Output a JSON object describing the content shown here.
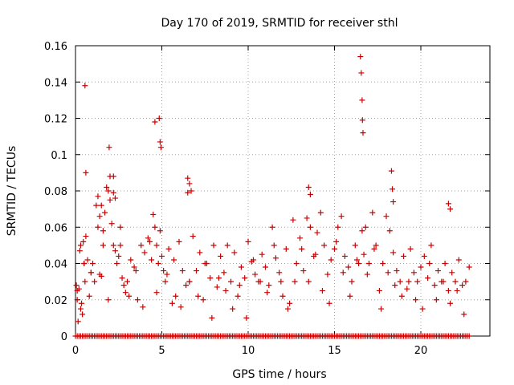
{
  "chart_data": {
    "type": "scatter",
    "title": "Day 170 of 2019, SRMTID for receiver sthl",
    "xlabel": "GPS time / hours",
    "ylabel": "SRMTID / TECUs",
    "xlim": [
      0,
      24
    ],
    "ylim": [
      0,
      0.16
    ],
    "x_ticks": [
      0,
      5,
      10,
      15,
      20
    ],
    "x_tick_labels": [
      "0",
      "5",
      "10",
      "15",
      "20"
    ],
    "y_ticks": [
      0,
      0.02,
      0.04,
      0.06,
      0.08,
      0.1,
      0.12,
      0.14,
      0.16
    ],
    "y_tick_labels": [
      "0",
      "0.02",
      "0.04",
      "0.06",
      "0.08",
      "0.1",
      "0.12",
      "0.14",
      "0.16"
    ],
    "grid": true,
    "marker": "+",
    "color": "#cc0000",
    "zero_baseline": {
      "x_start": 0,
      "x_end": 22.8,
      "step": 0.1,
      "y": 0
    },
    "series": [
      {
        "name": "SRMTID",
        "x": [
          0.05,
          0.1,
          0.15,
          0.2,
          0.25,
          0.3,
          0.35,
          0.4,
          0.45,
          0.5,
          0.55,
          0.6,
          0.7,
          0.8,
          0.9,
          1.0,
          1.1,
          1.2,
          1.3,
          1.4,
          1.5,
          1.6,
          1.7,
          1.8,
          1.9,
          2.0,
          2.1,
          2.2,
          2.3,
          2.4,
          2.5,
          2.6,
          2.7,
          2.8,
          2.9,
          3.0,
          3.2,
          3.4,
          3.6,
          3.8,
          4.0,
          4.2,
          4.4,
          4.5,
          4.6,
          4.7,
          4.8,
          4.9,
          5.0,
          5.1,
          5.2,
          5.4,
          5.6,
          5.8,
          6.0,
          6.2,
          6.4,
          6.5,
          6.6,
          6.8,
          7.0,
          7.2,
          7.4,
          7.6,
          7.8,
          8.0,
          8.2,
          8.4,
          8.6,
          8.8,
          9.0,
          9.2,
          9.4,
          9.6,
          9.8,
          10.0,
          10.2,
          10.4,
          10.6,
          10.8,
          11.0,
          11.2,
          11.4,
          11.6,
          11.8,
          12.0,
          12.2,
          12.4,
          12.6,
          12.8,
          13.0,
          13.2,
          13.4,
          13.6,
          13.8,
          14.0,
          14.2,
          14.4,
          14.6,
          14.8,
          15.0,
          15.2,
          15.4,
          15.6,
          15.8,
          16.0,
          16.2,
          16.4,
          16.6,
          16.7,
          16.8,
          17.0,
          17.2,
          17.4,
          17.6,
          17.8,
          18.0,
          18.2,
          18.4,
          18.6,
          18.8,
          19.0,
          19.2,
          19.4,
          19.6,
          19.8,
          20.0,
          20.2,
          20.4,
          20.6,
          20.8,
          21.0,
          21.2,
          21.4,
          21.6,
          21.8,
          22.0,
          22.2,
          22.4,
          22.6,
          22.8,
          0.1,
          0.3,
          0.5,
          0.9,
          1.3,
          1.6,
          1.9,
          2.2,
          2.6,
          3.1,
          3.5,
          3.9,
          4.3,
          4.7,
          5.3,
          5.7,
          6.1,
          6.6,
          7.1,
          7.5,
          7.9,
          8.3,
          8.7,
          9.1,
          9.5,
          9.9,
          10.3,
          10.7,
          11.1,
          11.5,
          11.9,
          12.3,
          12.7,
          13.1,
          13.5,
          13.9,
          14.3,
          14.7,
          15.1,
          15.5,
          15.9,
          16.3,
          16.9,
          17.3,
          17.7,
          18.1,
          18.5,
          18.9,
          19.3,
          19.7,
          20.1,
          20.5,
          20.9,
          21.3,
          21.7,
          22.1,
          22.5,
          0.55,
          0.6,
          1.95,
          2.0,
          4.6,
          4.85,
          4.9,
          4.95,
          6.5,
          6.6,
          6.7,
          16.5,
          16.55,
          16.6,
          16.62,
          16.65,
          18.3,
          18.35,
          18.4,
          13.5,
          13.6,
          21.6,
          21.7,
          2.2,
          2.3,
          1.4,
          1.5
        ],
        "y": [
          0.028,
          0.02,
          0.008,
          0.026,
          0.047,
          0.05,
          0.018,
          0.012,
          0.052,
          0.04,
          0.03,
          0.055,
          0.042,
          0.022,
          0.035,
          0.04,
          0.03,
          0.072,
          0.077,
          0.034,
          0.033,
          0.058,
          0.068,
          0.082,
          0.08,
          0.075,
          0.062,
          0.079,
          0.047,
          0.04,
          0.044,
          0.05,
          0.032,
          0.028,
          0.024,
          0.03,
          0.042,
          0.038,
          0.02,
          0.05,
          0.046,
          0.054,
          0.042,
          0.067,
          0.06,
          0.05,
          0.04,
          0.058,
          0.044,
          0.036,
          0.03,
          0.048,
          0.018,
          0.022,
          0.052,
          0.036,
          0.028,
          0.079,
          0.03,
          0.055,
          0.036,
          0.046,
          0.02,
          0.04,
          0.032,
          0.05,
          0.027,
          0.044,
          0.035,
          0.05,
          0.03,
          0.046,
          0.022,
          0.038,
          0.032,
          0.052,
          0.041,
          0.034,
          0.03,
          0.045,
          0.038,
          0.028,
          0.06,
          0.043,
          0.035,
          0.022,
          0.048,
          0.018,
          0.064,
          0.04,
          0.054,
          0.036,
          0.065,
          0.06,
          0.044,
          0.057,
          0.068,
          0.05,
          0.034,
          0.042,
          0.048,
          0.06,
          0.066,
          0.044,
          0.038,
          0.03,
          0.05,
          0.04,
          0.058,
          0.045,
          0.06,
          0.04,
          0.068,
          0.05,
          0.025,
          0.04,
          0.066,
          0.058,
          0.046,
          0.036,
          0.03,
          0.044,
          0.026,
          0.048,
          0.035,
          0.03,
          0.038,
          0.044,
          0.032,
          0.05,
          0.028,
          0.036,
          0.03,
          0.04,
          0.025,
          0.035,
          0.03,
          0.042,
          0.028,
          0.03,
          0.038,
          0.025,
          0.015,
          0.04,
          0.035,
          0.06,
          0.05,
          0.02,
          0.05,
          0.06,
          0.022,
          0.036,
          0.016,
          0.052,
          0.024,
          0.034,
          0.042,
          0.016,
          0.03,
          0.022,
          0.04,
          0.01,
          0.032,
          0.025,
          0.015,
          0.028,
          0.01,
          0.042,
          0.03,
          0.024,
          0.05,
          0.03,
          0.015,
          0.03,
          0.048,
          0.03,
          0.045,
          0.025,
          0.018,
          0.052,
          0.035,
          0.022,
          0.042,
          0.034,
          0.048,
          0.015,
          0.035,
          0.028,
          0.022,
          0.03,
          0.02,
          0.015,
          0.04,
          0.02,
          0.03,
          0.018,
          0.025,
          0.012,
          0.138,
          0.09,
          0.104,
          0.088,
          0.118,
          0.12,
          0.107,
          0.104,
          0.087,
          0.084,
          0.08,
          0.154,
          0.145,
          0.13,
          0.119,
          0.112,
          0.091,
          0.081,
          0.074,
          0.082,
          0.078,
          0.073,
          0.07,
          0.088,
          0.076,
          0.066,
          0.072
        ]
      }
    ]
  }
}
